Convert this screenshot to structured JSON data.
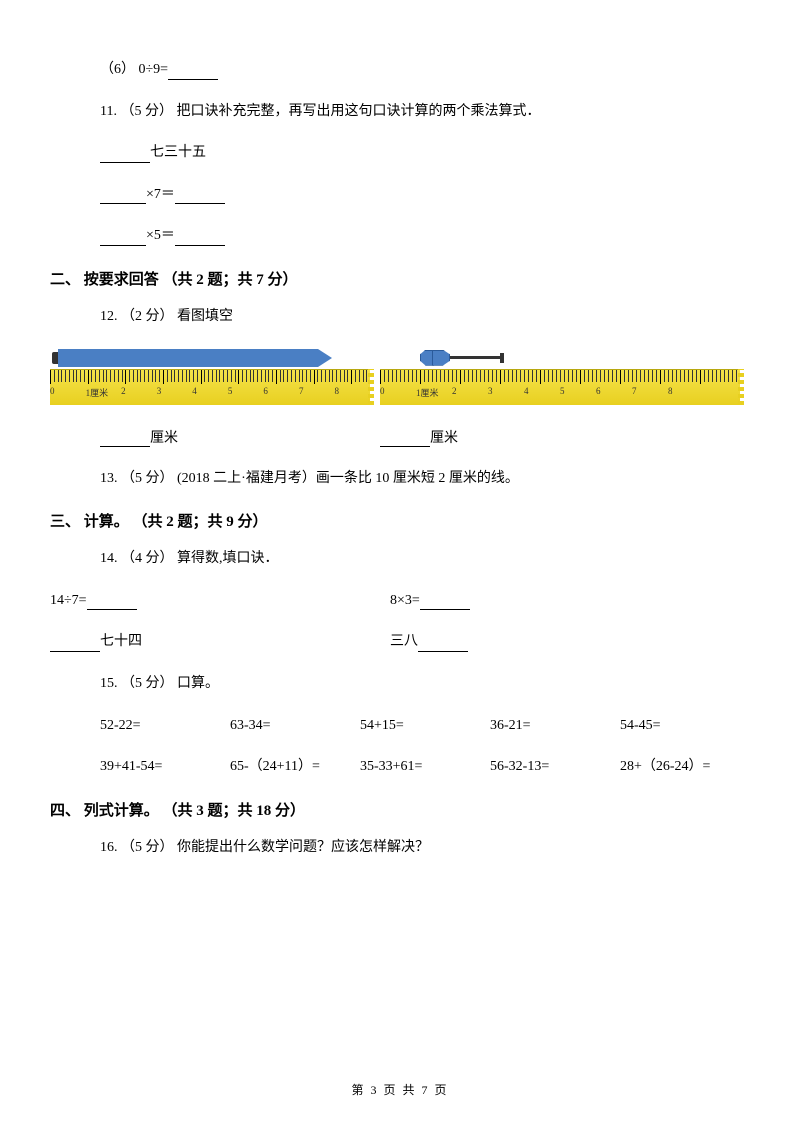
{
  "q6": {
    "label": "（6） 0÷9="
  },
  "q11": {
    "prefix": "11. （5 分） ",
    "text": "把口诀补充完整，再写出用这句口诀计算的两个乘法算式．",
    "line1_suffix": "七三十五",
    "line2_mid": "×7＝",
    "line3_mid": "×5＝"
  },
  "sec2": {
    "title": "二、 按要求回答 （共 2 题；共 7 分）"
  },
  "q12": {
    "prefix": "12. （2 分） ",
    "text": "看图填空",
    "unit": "厘米"
  },
  "ruler": {
    "left_nums": [
      "0",
      "1厘米",
      "2",
      "3",
      "4",
      "5",
      "6",
      "7",
      "8"
    ],
    "right_nums": [
      "0",
      "1厘米",
      "2",
      "3",
      "4",
      "5",
      "6",
      "7",
      "8",
      ""
    ],
    "tick_color": "#333333",
    "bg_top": "#f5e24a",
    "bg_bottom": "#e8d020"
  },
  "q13": {
    "prefix": "13. （5 分） ",
    "context": "(2018 二上·福建月考）",
    "text": "画一条比 10 厘米短 2 厘米的线。"
  },
  "sec3": {
    "title": "三、 计算。 （共 2 题；共 9 分）"
  },
  "q14": {
    "prefix": "14. （4 分） ",
    "text": "算得数,填口诀．",
    "l1a": "14÷7=",
    "l1b": "8×3=",
    "l2a_suffix": "七十四",
    "l2b_prefix": "三八"
  },
  "q15": {
    "prefix": "15. （5 分） ",
    "text": "口算。",
    "row1": [
      "52-22=",
      "63-34=",
      "54+15=",
      "36-21=",
      "54-45="
    ],
    "row2": [
      "39+41-54=",
      "65-（24+11）=",
      "35-33+61=",
      "56-32-13=",
      "28+（26-24）="
    ]
  },
  "sec4": {
    "title": "四、 列式计算。 （共 3 题；共 18 分）"
  },
  "q16": {
    "prefix": "16. （5 分） ",
    "text": "你能提出什么数学问题？应该怎样解决？"
  },
  "footer": {
    "text": "第 3 页 共 7 页"
  }
}
